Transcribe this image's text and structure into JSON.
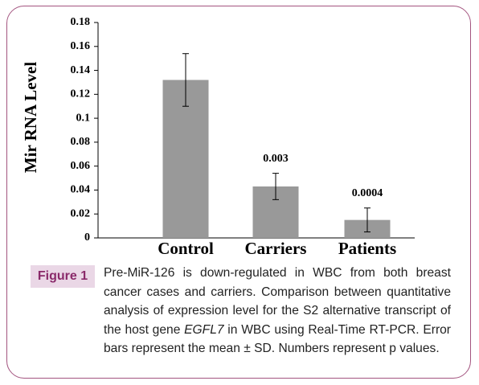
{
  "chart_data": {
    "type": "bar",
    "y_label": "Mir RNA Level",
    "categories": [
      "Control",
      "Carriers",
      "Patients"
    ],
    "values": [
      0.132,
      0.043,
      0.015
    ],
    "errors": [
      0.022,
      0.011,
      0.01
    ],
    "p_value_labels": [
      null,
      "0.003",
      "0.0004"
    ],
    "color": "#999999",
    "ylim": [
      0,
      0.18
    ],
    "yticks": [
      0,
      0.02,
      0.04,
      0.06,
      0.08,
      0.1,
      0.12,
      0.14,
      0.16,
      0.18
    ],
    "grid": false
  },
  "figure": {
    "label": "Figure 1",
    "caption": [
      "Pre-MiR-126 is down-regulated in WBC from both breast cancer cases and carriers. Comparison between quantitative analysis of expression level for the S2 alternative transcript of the host gene ",
      "EGFL7",
      " in WBC using Real-Time RT-PCR. Error bars represent the mean ± SD. Numbers represent p values."
    ]
  }
}
